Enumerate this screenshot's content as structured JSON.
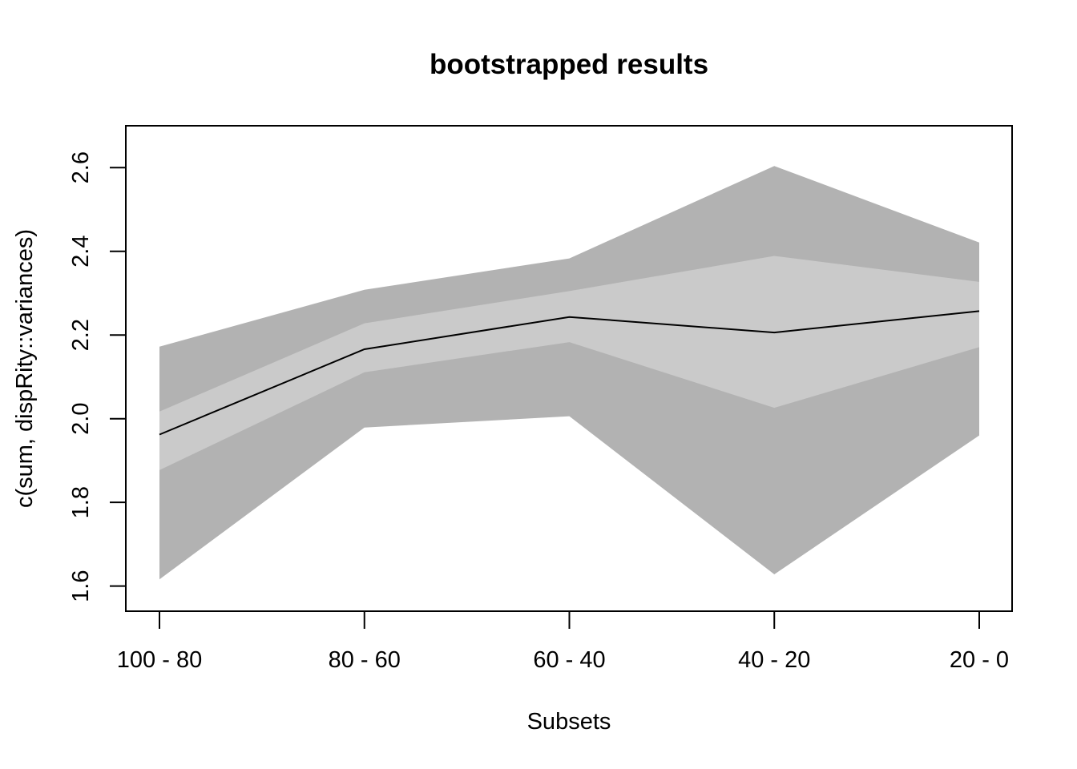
{
  "chart_data": {
    "type": "area",
    "title": "bootstrapped results",
    "xlabel": "Subsets",
    "ylabel": "c(sum, dispRity::variances)",
    "categories": [
      "100 - 80",
      "80 - 60",
      "60 - 40",
      "40 - 20",
      "20 - 0"
    ],
    "ylim": [
      1.54,
      2.7
    ],
    "yticks": [
      "1.6",
      "1.8",
      "2.0",
      "2.2",
      "2.4",
      "2.6"
    ],
    "grid": false,
    "legend": "none",
    "series": [
      {
        "role": "central-tendency",
        "values": [
          1.962,
          2.166,
          2.243,
          2.206,
          2.257
        ]
      },
      {
        "role": "outer-interval",
        "lower": [
          1.616,
          1.979,
          2.006,
          1.628,
          1.96
        ],
        "upper": [
          2.172,
          2.308,
          2.383,
          2.604,
          2.421
        ]
      },
      {
        "role": "inner-interval",
        "lower": [
          1.877,
          2.111,
          2.183,
          2.026,
          2.171
        ],
        "upper": [
          2.017,
          2.228,
          2.305,
          2.389,
          2.327
        ]
      }
    ],
    "colors": {
      "outer": "#b2b2b2",
      "inner": "#cacaca",
      "line": "#000000",
      "frame": "#000000"
    }
  }
}
